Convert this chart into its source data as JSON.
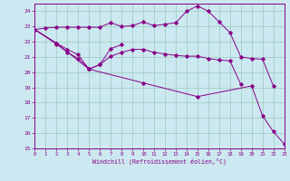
{
  "xlabel": "Windchill (Refroidissement éolien,°C)",
  "bg_color": "#cce8f0",
  "grid_color": "#99ccbb",
  "line_color": "#880088",
  "xmin": 0,
  "xmax": 23,
  "ymin": 15,
  "ymax": 24.5,
  "yticks": [
    15,
    16,
    17,
    18,
    19,
    20,
    21,
    22,
    23,
    24
  ],
  "line1_x": [
    0,
    1,
    2,
    3,
    4,
    5,
    6,
    7,
    8,
    9,
    10,
    11,
    12,
    13,
    14,
    15,
    16,
    17,
    18,
    19,
    20,
    21,
    22
  ],
  "line1_y": [
    22.8,
    22.9,
    22.95,
    22.95,
    22.95,
    22.95,
    22.95,
    23.25,
    23.0,
    23.05,
    23.3,
    23.05,
    23.15,
    23.25,
    24.0,
    24.35,
    24.0,
    23.3,
    22.6,
    21.0,
    20.9,
    20.85,
    19.1
  ],
  "line2_x": [
    0,
    2,
    3,
    4,
    5,
    6,
    7,
    8
  ],
  "line2_y": [
    22.8,
    21.9,
    21.5,
    21.15,
    20.2,
    20.5,
    21.55,
    21.8
  ],
  "line3_x": [
    0,
    2,
    3,
    4,
    5,
    6,
    7,
    8,
    9,
    10,
    11,
    12,
    13,
    14,
    15,
    16,
    17,
    18,
    19
  ],
  "line3_y": [
    22.8,
    21.85,
    21.3,
    20.9,
    20.2,
    20.5,
    21.05,
    21.3,
    21.5,
    21.5,
    21.3,
    21.2,
    21.1,
    21.05,
    21.05,
    20.9,
    20.8,
    20.75,
    19.2
  ],
  "line4_x": [
    0,
    2,
    5,
    10,
    15,
    20,
    21,
    22,
    23
  ],
  "line4_y": [
    22.8,
    21.9,
    20.2,
    19.3,
    18.4,
    19.1,
    17.15,
    16.1,
    15.3
  ]
}
